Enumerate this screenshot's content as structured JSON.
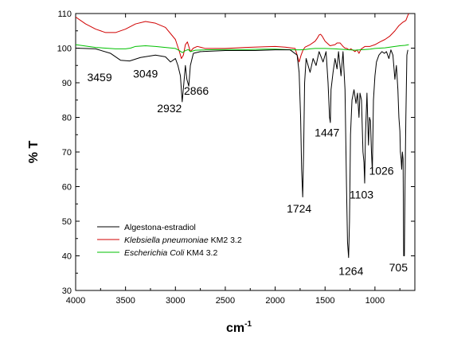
{
  "chart_data": {
    "type": "line",
    "xlabel": "cm",
    "xlabel_sup": "-1",
    "ylabel": "% T",
    "xlim": [
      4000,
      600
    ],
    "ylim": [
      30,
      110
    ],
    "x_ticks": [
      4000,
      3500,
      3000,
      2500,
      2000,
      1500,
      1000
    ],
    "y_ticks": [
      30,
      40,
      50,
      60,
      70,
      80,
      90,
      100,
      110
    ],
    "grid": false,
    "legend_position": "bottom-left",
    "series": [
      {
        "name": "Algestona-estradiol",
        "color": "#000000",
        "points": [
          [
            4000,
            100
          ],
          [
            3800,
            99.8
          ],
          [
            3650,
            98.5
          ],
          [
            3550,
            96.5
          ],
          [
            3459,
            96.3
          ],
          [
            3350,
            97.3
          ],
          [
            3200,
            98
          ],
          [
            3100,
            97.5
          ],
          [
            3049,
            96
          ],
          [
            3000,
            97
          ],
          [
            2975,
            95
          ],
          [
            2950,
            92
          ],
          [
            2932,
            84.5
          ],
          [
            2915,
            90
          ],
          [
            2900,
            95
          ],
          [
            2885,
            91
          ],
          [
            2866,
            89
          ],
          [
            2850,
            95
          ],
          [
            2820,
            98.5
          ],
          [
            2750,
            99
          ],
          [
            2500,
            99.3
          ],
          [
            2200,
            99.3
          ],
          [
            2000,
            99.5
          ],
          [
            1850,
            99.5
          ],
          [
            1780,
            98
          ],
          [
            1760,
            93
          ],
          [
            1745,
            80
          ],
          [
            1735,
            65
          ],
          [
            1724,
            57
          ],
          [
            1715,
            70
          ],
          [
            1705,
            90
          ],
          [
            1690,
            97
          ],
          [
            1650,
            93
          ],
          [
            1620,
            97
          ],
          [
            1590,
            95
          ],
          [
            1560,
            99
          ],
          [
            1520,
            96
          ],
          [
            1490,
            99
          ],
          [
            1470,
            90
          ],
          [
            1455,
            80
          ],
          [
            1447,
            78.5
          ],
          [
            1440,
            88
          ],
          [
            1420,
            93
          ],
          [
            1400,
            97
          ],
          [
            1380,
            94
          ],
          [
            1365,
            99
          ],
          [
            1340,
            92
          ],
          [
            1320,
            99
          ],
          [
            1300,
            88
          ],
          [
            1285,
            60
          ],
          [
            1275,
            44
          ],
          [
            1264,
            39.5
          ],
          [
            1255,
            50
          ],
          [
            1245,
            75
          ],
          [
            1230,
            85
          ],
          [
            1210,
            88
          ],
          [
            1190,
            84
          ],
          [
            1175,
            87
          ],
          [
            1160,
            80
          ],
          [
            1150,
            87
          ],
          [
            1135,
            85
          ],
          [
            1120,
            70
          ],
          [
            1110,
            67
          ],
          [
            1103,
            61
          ],
          [
            1095,
            75
          ],
          [
            1080,
            87
          ],
          [
            1065,
            72
          ],
          [
            1055,
            80
          ],
          [
            1045,
            79
          ],
          [
            1035,
            70
          ],
          [
            1026,
            64.5
          ],
          [
            1015,
            85
          ],
          [
            1000,
            92
          ],
          [
            985,
            96
          ],
          [
            960,
            98
          ],
          [
            930,
            99
          ],
          [
            905,
            98.5
          ],
          [
            885,
            99
          ],
          [
            860,
            97
          ],
          [
            840,
            99.5
          ],
          [
            820,
            98
          ],
          [
            800,
            91
          ],
          [
            785,
            95
          ],
          [
            770,
            88
          ],
          [
            760,
            80
          ],
          [
            750,
            76
          ],
          [
            745,
            70
          ],
          [
            738,
            68
          ],
          [
            732,
            65
          ],
          [
            725,
            70
          ],
          [
            718,
            68
          ],
          [
            712,
            40
          ],
          [
            705,
            40
          ],
          [
            698,
            62
          ],
          [
            690,
            80
          ],
          [
            680,
            98
          ],
          [
            670,
            99.5
          ]
        ]
      },
      {
        "name": "Klebsiella pneumoniae KM2 3.2",
        "color": "#d00000",
        "points": [
          [
            4000,
            109
          ],
          [
            3900,
            107
          ],
          [
            3800,
            105.5
          ],
          [
            3700,
            104.5
          ],
          [
            3600,
            104.5
          ],
          [
            3500,
            105.5
          ],
          [
            3400,
            107
          ],
          [
            3300,
            107.7
          ],
          [
            3200,
            107.2
          ],
          [
            3100,
            106
          ],
          [
            3000,
            102.5
          ],
          [
            2960,
            99
          ],
          [
            2940,
            97
          ],
          [
            2920,
            98
          ],
          [
            2900,
            101
          ],
          [
            2880,
            101.8
          ],
          [
            2850,
            99
          ],
          [
            2820,
            100
          ],
          [
            2780,
            100.5
          ],
          [
            2700,
            99.9
          ],
          [
            2500,
            99.9
          ],
          [
            2300,
            100.2
          ],
          [
            2100,
            100.4
          ],
          [
            2000,
            100.5
          ],
          [
            1900,
            100.3
          ],
          [
            1800,
            99.9
          ],
          [
            1780,
            98
          ],
          [
            1760,
            96
          ],
          [
            1740,
            98
          ],
          [
            1720,
            99.5
          ],
          [
            1700,
            100.3
          ],
          [
            1650,
            101
          ],
          [
            1600,
            102
          ],
          [
            1580,
            102.8
          ],
          [
            1560,
            103.8
          ],
          [
            1545,
            104
          ],
          [
            1530,
            103.5
          ],
          [
            1500,
            102
          ],
          [
            1450,
            100.7
          ],
          [
            1400,
            101
          ],
          [
            1380,
            101.5
          ],
          [
            1350,
            101.5
          ],
          [
            1320,
            100.5
          ],
          [
            1300,
            100
          ],
          [
            1280,
            99.9
          ],
          [
            1260,
            99.5
          ],
          [
            1240,
            99.8
          ],
          [
            1200,
            99
          ],
          [
            1180,
            99.5
          ],
          [
            1160,
            98.5
          ],
          [
            1140,
            99.7
          ],
          [
            1100,
            100.5
          ],
          [
            1050,
            100.5
          ],
          [
            1000,
            101
          ],
          [
            950,
            101.8
          ],
          [
            900,
            102.5
          ],
          [
            850,
            103.5
          ],
          [
            800,
            105
          ],
          [
            760,
            106.5
          ],
          [
            720,
            107.5
          ],
          [
            690,
            108
          ],
          [
            670,
            109.5
          ],
          [
            660,
            110
          ]
        ]
      },
      {
        "name": "Escherichia Coli KM4 3.2",
        "color": "#00c000",
        "points": [
          [
            4000,
            101
          ],
          [
            3900,
            100.6
          ],
          [
            3800,
            100.2
          ],
          [
            3700,
            100
          ],
          [
            3600,
            99.8
          ],
          [
            3500,
            99.8
          ],
          [
            3450,
            100
          ],
          [
            3400,
            100.5
          ],
          [
            3300,
            100.7
          ],
          [
            3200,
            100.5
          ],
          [
            3100,
            100.2
          ],
          [
            3000,
            99.9
          ],
          [
            2960,
            99.3
          ],
          [
            2930,
            98.7
          ],
          [
            2900,
            99.3
          ],
          [
            2870,
            99.6
          ],
          [
            2850,
            99
          ],
          [
            2800,
            99.4
          ],
          [
            2700,
            99.5
          ],
          [
            2500,
            99.6
          ],
          [
            2300,
            99.6
          ],
          [
            2100,
            99.7
          ],
          [
            2000,
            99.7
          ],
          [
            1900,
            99.6
          ],
          [
            1800,
            99.5
          ],
          [
            1750,
            99.5
          ],
          [
            1700,
            99.6
          ],
          [
            1650,
            99.8
          ],
          [
            1600,
            99.9
          ],
          [
            1500,
            99.9
          ],
          [
            1400,
            99.8
          ],
          [
            1300,
            99.6
          ],
          [
            1250,
            99.5
          ],
          [
            1200,
            99.4
          ],
          [
            1150,
            99.5
          ],
          [
            1100,
            99.6
          ],
          [
            1050,
            99.7
          ],
          [
            1000,
            99.9
          ],
          [
            950,
            100
          ],
          [
            900,
            100.1
          ],
          [
            850,
            100.3
          ],
          [
            800,
            100.5
          ],
          [
            750,
            100.7
          ],
          [
            700,
            100.8
          ],
          [
            660,
            101
          ]
        ]
      }
    ],
    "annotations": [
      {
        "text": "3459",
        "x": 3760,
        "y": 90.5
      },
      {
        "text": "3049",
        "x": 3300,
        "y": 91.5
      },
      {
        "text": "2932",
        "x": 3060,
        "y": 81.5
      },
      {
        "text": "2866",
        "x": 2790,
        "y": 86.5
      },
      {
        "text": "1724",
        "x": 1760,
        "y": 52.5
      },
      {
        "text": "1447",
        "x": 1480,
        "y": 74.5
      },
      {
        "text": "1103",
        "x": 1135,
        "y": 56.5
      },
      {
        "text": "1026",
        "x": 935,
        "y": 63.5
      },
      {
        "text": "1264",
        "x": 1240,
        "y": 34.5
      },
      {
        "text": "705",
        "x": 765,
        "y": 35.5
      }
    ]
  }
}
